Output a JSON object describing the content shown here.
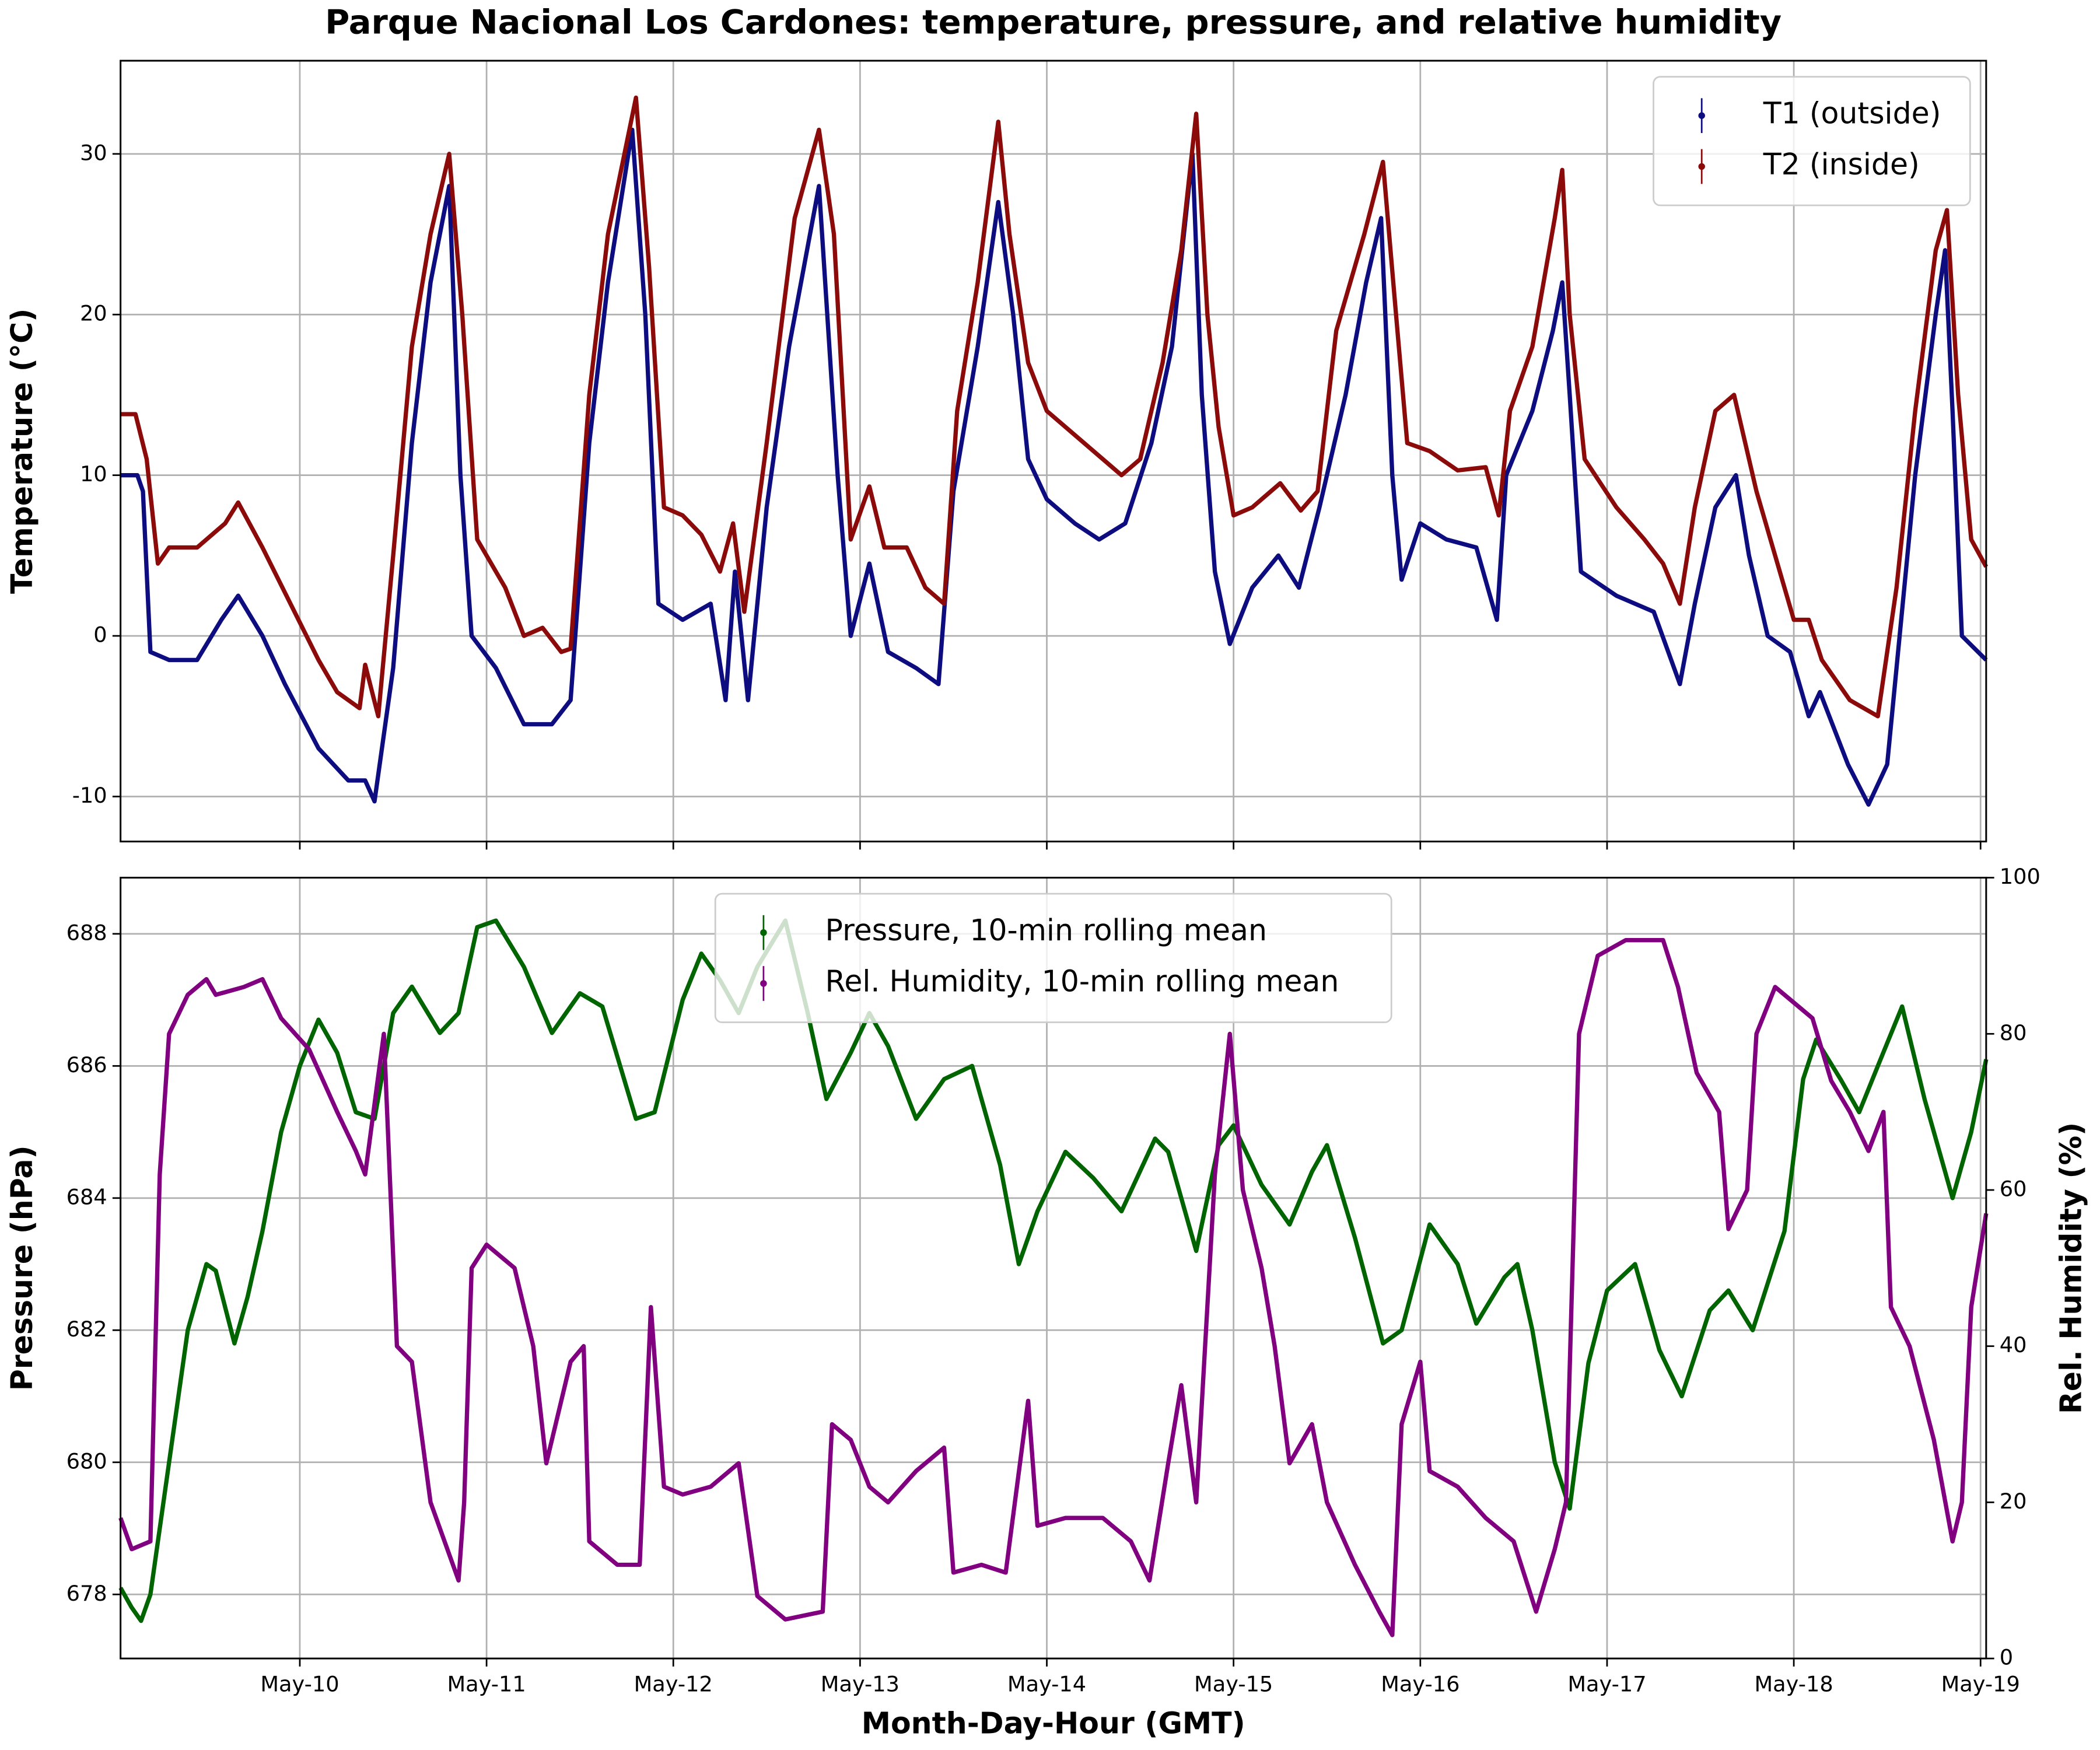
{
  "chart_data": [
    {
      "type": "scatter",
      "title": "Parque Nacional Los Cardones: temperature, pressure, and relative humidity",
      "ylabel": "Temperature (°C)",
      "xlim": [
        9.04,
        19.03
      ],
      "xticks": [
        10,
        11,
        12,
        13,
        14,
        15,
        16,
        17,
        18,
        19
      ],
      "ylim": [
        -12.8,
        35.8
      ],
      "yticks": [
        -10,
        0,
        10,
        20,
        30
      ],
      "grid": true,
      "legend": "upper right",
      "series": [
        {
          "name": "T1 (outside)",
          "color": "#0d0d80",
          "x": [
            9.04,
            9.13,
            9.16,
            9.2,
            9.3,
            9.45,
            9.58,
            9.67,
            9.8,
            9.92,
            10.1,
            10.26,
            10.35,
            10.4,
            10.5,
            10.6,
            10.7,
            10.8,
            10.86,
            10.92,
            11.05,
            11.2,
            11.35,
            11.45,
            11.55,
            11.65,
            11.78,
            11.85,
            11.92,
            12.05,
            12.2,
            12.28,
            12.33,
            12.4,
            12.5,
            12.62,
            12.78,
            12.88,
            12.95,
            13.05,
            13.15,
            13.3,
            13.42,
            13.5,
            13.63,
            13.74,
            13.82,
            13.9,
            14.0,
            14.15,
            14.28,
            14.42,
            14.56,
            14.67,
            14.78,
            14.83,
            14.9,
            14.98,
            15.1,
            15.24,
            15.35,
            15.46,
            15.6,
            15.71,
            15.79,
            15.85,
            15.9,
            16.0,
            16.14,
            16.3,
            16.41,
            16.46,
            16.6,
            16.71,
            16.76,
            16.8,
            16.86,
            17.05,
            17.25,
            17.39,
            17.47,
            17.58,
            17.69,
            17.76,
            17.86,
            17.98,
            18.08,
            18.14,
            18.29,
            18.4,
            18.5,
            18.65,
            18.76,
            18.81,
            18.85,
            18.9,
            19.03
          ],
          "values": [
            10,
            10,
            9,
            -1,
            -1.5,
            -1.5,
            1,
            2.5,
            0,
            -3,
            -7,
            -9,
            -9,
            -10.3,
            -2,
            12,
            22,
            28,
            10,
            0,
            -2,
            -5.5,
            -5.5,
            -4,
            12,
            22,
            31.5,
            20,
            2,
            1,
            2,
            -4,
            4,
            -4,
            8,
            18,
            28,
            10,
            0,
            4.5,
            -1,
            -2,
            -3,
            9,
            18,
            27,
            20,
            11,
            8.5,
            7,
            6,
            7,
            12,
            18,
            30,
            15,
            4,
            -0.5,
            3,
            5,
            3,
            8,
            15,
            22,
            26,
            10,
            3.5,
            7,
            6,
            5.5,
            1,
            10,
            14,
            19,
            22,
            15,
            4,
            2.5,
            1.5,
            -3,
            2,
            8,
            10,
            5,
            0,
            -1,
            -5,
            -3.5,
            -8,
            -10.5,
            -8,
            10,
            20,
            24,
            14,
            0,
            -1.5
          ]
        },
        {
          "name": "T2 (inside)",
          "color": "#8b0a0a",
          "x": [
            9.04,
            9.12,
            9.18,
            9.24,
            9.3,
            9.45,
            9.6,
            9.67,
            9.8,
            9.95,
            10.1,
            10.2,
            10.32,
            10.35,
            10.42,
            10.5,
            10.6,
            10.7,
            10.8,
            10.87,
            10.95,
            11.1,
            11.2,
            11.3,
            11.4,
            11.45,
            11.55,
            11.65,
            11.8,
            11.87,
            11.95,
            12.05,
            12.15,
            12.25,
            12.32,
            12.38,
            12.5,
            12.65,
            12.78,
            12.86,
            12.95,
            13.05,
            13.13,
            13.25,
            13.35,
            13.45,
            13.52,
            13.63,
            13.74,
            13.8,
            13.9,
            14.0,
            14.2,
            14.4,
            14.5,
            14.62,
            14.72,
            14.8,
            14.86,
            14.92,
            15.0,
            15.1,
            15.25,
            15.36,
            15.45,
            15.55,
            15.7,
            15.8,
            15.87,
            15.93,
            16.05,
            16.2,
            16.35,
            16.42,
            16.48,
            16.6,
            16.72,
            16.76,
            16.8,
            16.88,
            17.05,
            17.2,
            17.3,
            17.39,
            17.47,
            17.58,
            17.68,
            17.8,
            17.9,
            18.0,
            18.08,
            18.15,
            18.3,
            18.45,
            18.55,
            18.65,
            18.76,
            18.82,
            18.88,
            18.95,
            19.03
          ],
          "values": [
            13.8,
            13.8,
            11,
            4.5,
            5.5,
            5.5,
            7,
            8.3,
            5.5,
            2,
            -1.5,
            -3.5,
            -4.5,
            -1.8,
            -5,
            5,
            18,
            25,
            30,
            20,
            6,
            3,
            0,
            0.5,
            -1,
            -0.8,
            15,
            25,
            33.5,
            23,
            8,
            7.5,
            6.3,
            4,
            7,
            1.5,
            12,
            26,
            31.5,
            25,
            6,
            9.3,
            5.5,
            5.5,
            3,
            2,
            14,
            22,
            32,
            25,
            17,
            14,
            12,
            10,
            11,
            17,
            24,
            32.5,
            20,
            13,
            7.5,
            8,
            9.5,
            7.8,
            9,
            19,
            25,
            29.5,
            20,
            12,
            11.5,
            10.3,
            10.5,
            7.5,
            14,
            18,
            26,
            29,
            20,
            11,
            8,
            6,
            4.5,
            2,
            8,
            14,
            15,
            9,
            5,
            1,
            1,
            -1.5,
            -4,
            -5,
            3,
            14,
            24,
            26.5,
            15,
            6,
            4.3
          ]
        }
      ]
    },
    {
      "type": "scatter",
      "xlabel": "Month-Day-Hour (GMT)",
      "ylabel": "Pressure (hPa)",
      "y2label": "Rel. Humidity (%)",
      "xlim": [
        9.04,
        19.03
      ],
      "xticks": [
        {
          "value": 10,
          "label": "May-10"
        },
        {
          "value": 11,
          "label": "May-11"
        },
        {
          "value": 12,
          "label": "May-12"
        },
        {
          "value": 13,
          "label": "May-13"
        },
        {
          "value": 14,
          "label": "May-14"
        },
        {
          "value": 15,
          "label": "May-15"
        },
        {
          "value": 16,
          "label": "May-16"
        },
        {
          "value": 17,
          "label": "May-17"
        },
        {
          "value": 18,
          "label": "May-18"
        },
        {
          "value": 19,
          "label": "May-19"
        }
      ],
      "ylim": [
        677.03,
        688.85
      ],
      "yticks": [
        678,
        680,
        682,
        684,
        686,
        688
      ],
      "y2lim": [
        0,
        100
      ],
      "y2ticks": [
        0,
        20,
        40,
        60,
        80,
        100
      ],
      "grid": true,
      "legend": "upper center",
      "series": [
        {
          "name": "Pressure, 10-min rolling mean",
          "color": "#006400",
          "x": [
            9.04,
            9.1,
            9.15,
            9.2,
            9.3,
            9.4,
            9.5,
            9.55,
            9.65,
            9.72,
            9.8,
            9.9,
            10.0,
            10.1,
            10.2,
            10.3,
            10.4,
            10.5,
            10.6,
            10.75,
            10.85,
            10.95,
            11.05,
            11.2,
            11.35,
            11.5,
            11.62,
            11.8,
            11.9,
            12.05,
            12.15,
            12.25,
            12.35,
            12.45,
            12.6,
            12.72,
            12.82,
            12.95,
            13.05,
            13.15,
            13.3,
            13.45,
            13.6,
            13.75,
            13.85,
            13.95,
            14.1,
            14.25,
            14.4,
            14.58,
            14.65,
            14.8,
            14.92,
            15.0,
            15.15,
            15.3,
            15.42,
            15.5,
            15.65,
            15.8,
            15.9,
            16.05,
            16.2,
            16.3,
            16.45,
            16.52,
            16.6,
            16.72,
            16.8,
            16.9,
            17.0,
            17.15,
            17.28,
            17.4,
            17.55,
            17.65,
            17.78,
            17.95,
            18.05,
            18.12,
            18.25,
            18.35,
            18.45,
            18.58,
            18.7,
            18.85,
            18.95,
            19.03
          ],
          "values": [
            678.1,
            677.8,
            677.6,
            678,
            680,
            682,
            683,
            682.9,
            681.8,
            682.5,
            683.5,
            685,
            686,
            686.7,
            686.2,
            685.3,
            685.2,
            686.8,
            687.2,
            686.5,
            686.8,
            688.1,
            688.2,
            687.5,
            686.5,
            687.1,
            686.9,
            685.2,
            685.3,
            687,
            687.7,
            687.3,
            686.8,
            687.5,
            688.2,
            686.8,
            685.5,
            686.2,
            686.8,
            686.3,
            685.2,
            685.8,
            686,
            684.5,
            683,
            683.8,
            684.7,
            684.3,
            683.8,
            684.9,
            684.7,
            683.2,
            684.8,
            685.1,
            684.2,
            683.6,
            684.4,
            684.8,
            683.4,
            681.8,
            682,
            683.6,
            683,
            682.1,
            682.8,
            683,
            682,
            680,
            679.3,
            681.5,
            682.6,
            683,
            681.7,
            681,
            682.3,
            682.6,
            682,
            683.5,
            685.8,
            686.4,
            685.8,
            685.3,
            686,
            686.9,
            685.5,
            684,
            685,
            686.1
          ]
        },
        {
          "name": "Rel. Humidity, 10-min rolling mean",
          "color": "#800080",
          "axis": "y2",
          "x": [
            9.04,
            9.1,
            9.2,
            9.25,
            9.3,
            9.4,
            9.5,
            9.55,
            9.7,
            9.8,
            9.9,
            10.05,
            10.2,
            10.3,
            10.35,
            10.45,
            10.52,
            10.6,
            10.7,
            10.85,
            10.88,
            10.92,
            11.0,
            11.15,
            11.25,
            11.32,
            11.45,
            11.52,
            11.55,
            11.7,
            11.82,
            11.88,
            11.95,
            12.05,
            12.2,
            12.35,
            12.45,
            12.6,
            12.8,
            12.85,
            12.95,
            13.05,
            13.15,
            13.3,
            13.45,
            13.5,
            13.65,
            13.78,
            13.9,
            13.95,
            14.1,
            14.3,
            14.45,
            14.55,
            14.65,
            14.72,
            14.8,
            14.9,
            14.98,
            15.05,
            15.15,
            15.22,
            15.3,
            15.42,
            15.5,
            15.65,
            15.78,
            15.85,
            15.9,
            16.0,
            16.05,
            16.2,
            16.35,
            16.5,
            16.62,
            16.72,
            16.78,
            16.85,
            16.95,
            17.1,
            17.3,
            17.38,
            17.48,
            17.6,
            17.65,
            17.75,
            17.8,
            17.9,
            18.0,
            18.1,
            18.2,
            18.3,
            18.4,
            18.48,
            18.52,
            18.62,
            18.75,
            18.85,
            18.9,
            18.95,
            19.03
          ],
          "values": [
            18,
            14,
            15,
            62,
            80,
            85,
            87,
            85,
            86,
            87,
            82,
            78,
            70,
            65,
            62,
            80,
            40,
            38,
            20,
            10,
            20,
            50,
            53,
            50,
            40,
            25,
            38,
            40,
            15,
            12,
            12,
            45,
            22,
            21,
            22,
            25,
            8,
            5,
            6,
            30,
            28,
            22,
            20,
            24,
            27,
            11,
            12,
            11,
            33,
            17,
            18,
            18,
            15,
            10,
            25,
            35,
            20,
            62,
            80,
            60,
            50,
            40,
            25,
            30,
            20,
            12,
            6,
            3,
            30,
            38,
            24,
            22,
            18,
            15,
            6,
            14,
            20,
            80,
            90,
            92,
            92,
            86,
            75,
            70,
            55,
            60,
            80,
            86,
            84,
            82,
            74,
            70,
            65,
            70,
            45,
            40,
            28,
            15,
            20,
            45,
            57
          ]
        }
      ]
    }
  ]
}
